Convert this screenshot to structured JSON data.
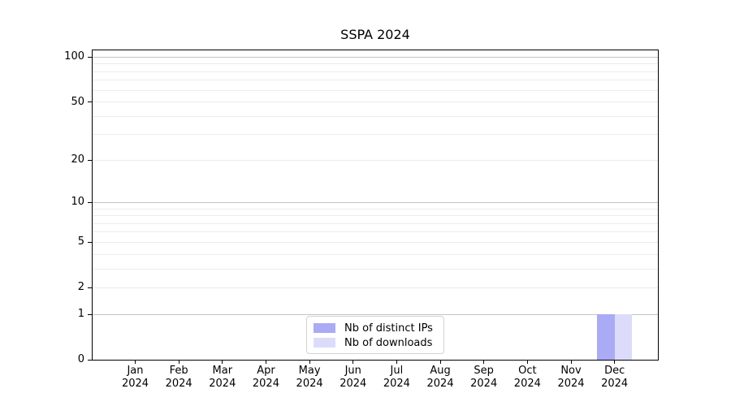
{
  "chart_data": {
    "type": "bar",
    "title": "SSPA 2024",
    "categories": [
      "Jan",
      "Feb",
      "Mar",
      "Apr",
      "May",
      "Jun",
      "Jul",
      "Aug",
      "Sep",
      "Oct",
      "Nov",
      "Dec"
    ],
    "category_year": "2024",
    "series": [
      {
        "name": "Nb of distinct IPs",
        "color": "#aaaaf5",
        "values": [
          0,
          0,
          0,
          0,
          0,
          0,
          0,
          0,
          0,
          0,
          0,
          1
        ]
      },
      {
        "name": "Nb of downloads",
        "color": "#dcdcfa",
        "values": [
          0,
          0,
          0,
          0,
          0,
          0,
          0,
          0,
          0,
          0,
          0,
          1
        ]
      }
    ],
    "y_axis": {
      "scale": "log1p",
      "ylim": [
        0,
        111
      ],
      "tick_labels": [
        0,
        1,
        2,
        5,
        10,
        20,
        50,
        100
      ],
      "major_gridlines": [
        1,
        10,
        100
      ],
      "minor_gridlines": [
        2,
        3,
        4,
        5,
        6,
        7,
        8,
        9,
        20,
        30,
        40,
        50,
        60,
        70,
        80,
        90
      ]
    },
    "x_axis": {
      "tick_count": 12
    },
    "legend": {
      "position": "lower center"
    },
    "colors": {
      "major_grid": "#c4c4c4",
      "minor_grid": "#ebebeb",
      "axis": "#000000",
      "text": "#000000"
    },
    "grid": true
  }
}
